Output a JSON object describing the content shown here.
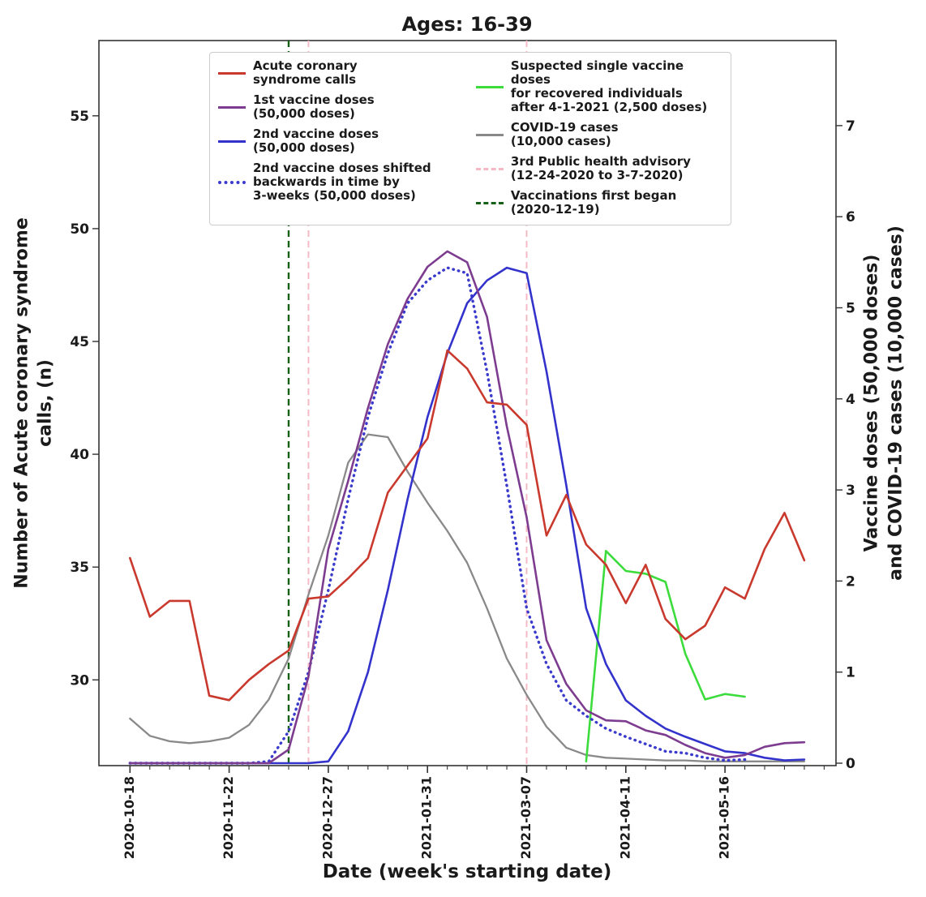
{
  "title": "Ages: 16-39",
  "x_axis": {
    "label": "Date (week's starting date)",
    "tick_labels": [
      "2020-10-18",
      "2020-11-22",
      "2020-12-27",
      "2021-01-31",
      "2021-03-07",
      "2021-04-11",
      "2021-05-16"
    ]
  },
  "y_left": {
    "label": "Number of Acute coronary syndrome\ncalls, (n)",
    "ticks": [
      30,
      35,
      40,
      45,
      50,
      55
    ]
  },
  "y_right": {
    "label": "Vaccine doses (50,000 doses)\nand COVID-19 cases (10,000 cases)",
    "ticks": [
      0,
      1,
      2,
      3,
      4,
      5,
      6,
      7
    ]
  },
  "legend": {
    "items": [
      {
        "label": "Acute coronary\nsyndrome calls",
        "color": "#c9392e",
        "style": "solid",
        "column": 1
      },
      {
        "label": "1st vaccine doses\n(50,000 doses)",
        "color": "#7d3c8f",
        "style": "solid",
        "column": 1
      },
      {
        "label": "2nd vaccine doses\n(50,000 doses)",
        "color": "#3333cc",
        "style": "solid",
        "column": 1
      },
      {
        "label": "2nd vaccine doses shifted\nbackwards in time by\n3-weeks (50,000 doses)",
        "color": "#3a3acc",
        "style": "dotted",
        "column": 1
      },
      {
        "label": "Suspected single vaccine doses\nfor recovered individuals\nafter 4-1-2021 (2,500 doses)",
        "color": "#3ddc3d",
        "style": "solid",
        "column": 2
      },
      {
        "label": "COVID-19 cases\n(10,000 cases)",
        "color": "#898989",
        "style": "solid",
        "column": 2
      },
      {
        "label": "3rd Public health advisory\n(12-24-2020 to 3-7-2020)",
        "color": "#f5b8c4",
        "style": "dashed",
        "column": 2
      },
      {
        "label": "Vaccinations first began\n(2020-12-19)",
        "color": "#176117",
        "style": "dashed",
        "column": 2
      }
    ]
  },
  "chart_data": {
    "type": "line",
    "x_weeks": [
      "2020-10-18",
      "2020-10-25",
      "2020-11-01",
      "2020-11-08",
      "2020-11-15",
      "2020-11-22",
      "2020-11-29",
      "2020-12-06",
      "2020-12-13",
      "2020-12-20",
      "2020-12-27",
      "2021-01-03",
      "2021-01-10",
      "2021-01-17",
      "2021-01-24",
      "2021-01-31",
      "2021-02-07",
      "2021-02-14",
      "2021-02-21",
      "2021-02-28",
      "2021-03-07",
      "2021-03-14",
      "2021-03-21",
      "2021-03-28",
      "2021-04-04",
      "2021-04-11",
      "2021-04-18",
      "2021-04-25",
      "2021-05-02",
      "2021-05-09",
      "2021-05-16",
      "2021-05-23",
      "2021-05-30",
      "2021-06-06",
      "2021-06-13"
    ],
    "axes": {
      "left_range": [
        26.2,
        58.3
      ],
      "right_range": [
        0,
        7.95
      ],
      "grid": false,
      "legend_position": "upper center"
    },
    "series": [
      {
        "name": "COVID-19 cases (10,000 cases)",
        "axis": "right",
        "color": "#898989",
        "style": "solid",
        "values": [
          0.49,
          0.3,
          0.24,
          0.22,
          0.24,
          0.28,
          0.42,
          0.7,
          1.15,
          1.85,
          2.5,
          3.3,
          3.61,
          3.58,
          3.2,
          2.86,
          2.55,
          2.2,
          1.7,
          1.15,
          0.75,
          0.4,
          0.17,
          0.09,
          0.06,
          0.05,
          0.04,
          0.03,
          0.03,
          0.02,
          0.02,
          0.02,
          0.02,
          0.02,
          0.02
        ]
      },
      {
        "name": "Suspected single vaccine doses for recovered individuals after 4-1-2021 (2,500 doses)",
        "axis": "right",
        "color": "#3ddc3d",
        "style": "solid",
        "values": [
          null,
          null,
          null,
          null,
          null,
          null,
          null,
          null,
          null,
          null,
          null,
          null,
          null,
          null,
          null,
          null,
          null,
          null,
          null,
          null,
          null,
          null,
          null,
          0.02,
          2.33,
          2.11,
          2.08,
          1.99,
          1.2,
          0.7,
          0.76,
          0.73,
          null,
          null,
          null
        ]
      },
      {
        "name": "2nd vaccine doses shifted backwards in time by 3-weeks (50,000 doses)",
        "axis": "right",
        "color": "#3a3acc",
        "style": "dotted",
        "values": [
          0,
          0,
          0,
          0,
          0,
          0,
          0,
          0.02,
          0.35,
          1.0,
          1.9,
          2.9,
          3.8,
          4.5,
          5.05,
          5.3,
          5.44,
          5.38,
          4.3,
          3.05,
          1.7,
          1.09,
          0.69,
          0.52,
          0.38,
          0.29,
          0.21,
          0.13,
          0.11,
          0.06,
          0.03,
          0.04,
          null,
          null,
          null
        ]
      },
      {
        "name": "2nd vaccine doses (50,000 doses)",
        "axis": "right",
        "color": "#3333cc",
        "style": "solid",
        "values": [
          0,
          0,
          0,
          0,
          0,
          0,
          0,
          0,
          0,
          0,
          0.02,
          0.35,
          1.0,
          1.9,
          2.9,
          3.8,
          4.5,
          5.05,
          5.3,
          5.44,
          5.38,
          4.3,
          3.05,
          1.7,
          1.09,
          0.69,
          0.52,
          0.38,
          0.29,
          0.21,
          0.13,
          0.11,
          0.06,
          0.03,
          0.04
        ]
      },
      {
        "name": "1st vaccine doses (50,000 doses)",
        "axis": "right",
        "color": "#7d3c8f",
        "style": "solid",
        "values": [
          0,
          0,
          0,
          0,
          0,
          0,
          0,
          0,
          0.15,
          0.95,
          2.35,
          3.1,
          3.9,
          4.6,
          5.1,
          5.45,
          5.62,
          5.5,
          4.9,
          3.7,
          2.7,
          1.35,
          0.87,
          0.58,
          0.47,
          0.46,
          0.36,
          0.31,
          0.2,
          0.11,
          0.06,
          0.09,
          0.18,
          0.22,
          0.23
        ]
      },
      {
        "name": "Acute coronary syndrome calls",
        "axis": "left",
        "color": "#c9392e",
        "style": "solid",
        "values": [
          35.4,
          32.8,
          33.5,
          33.5,
          29.3,
          29.1,
          30.0,
          30.7,
          31.3,
          33.6,
          33.7,
          34.5,
          35.4,
          38.3,
          39.5,
          40.7,
          44.6,
          43.8,
          42.3,
          42.2,
          41.3,
          36.4,
          38.2,
          36.0,
          35.1,
          33.4,
          35.1,
          32.7,
          31.8,
          32.4,
          34.1,
          33.6,
          35.8,
          37.4,
          35.3
        ]
      }
    ],
    "vlines": [
      {
        "name": "Vaccinations first began (2020-12-19)",
        "week_index": 8,
        "color": "#176117",
        "style": "dashed"
      },
      {
        "name": "3rd Public health advisory start (12-24-2020)",
        "week_index": 9,
        "color": "#f5b8c4",
        "style": "dashed"
      },
      {
        "name": "3rd Public health advisory end (3-7-2020)",
        "week_index": 20,
        "color": "#f5b8c4",
        "style": "dashed"
      }
    ]
  }
}
